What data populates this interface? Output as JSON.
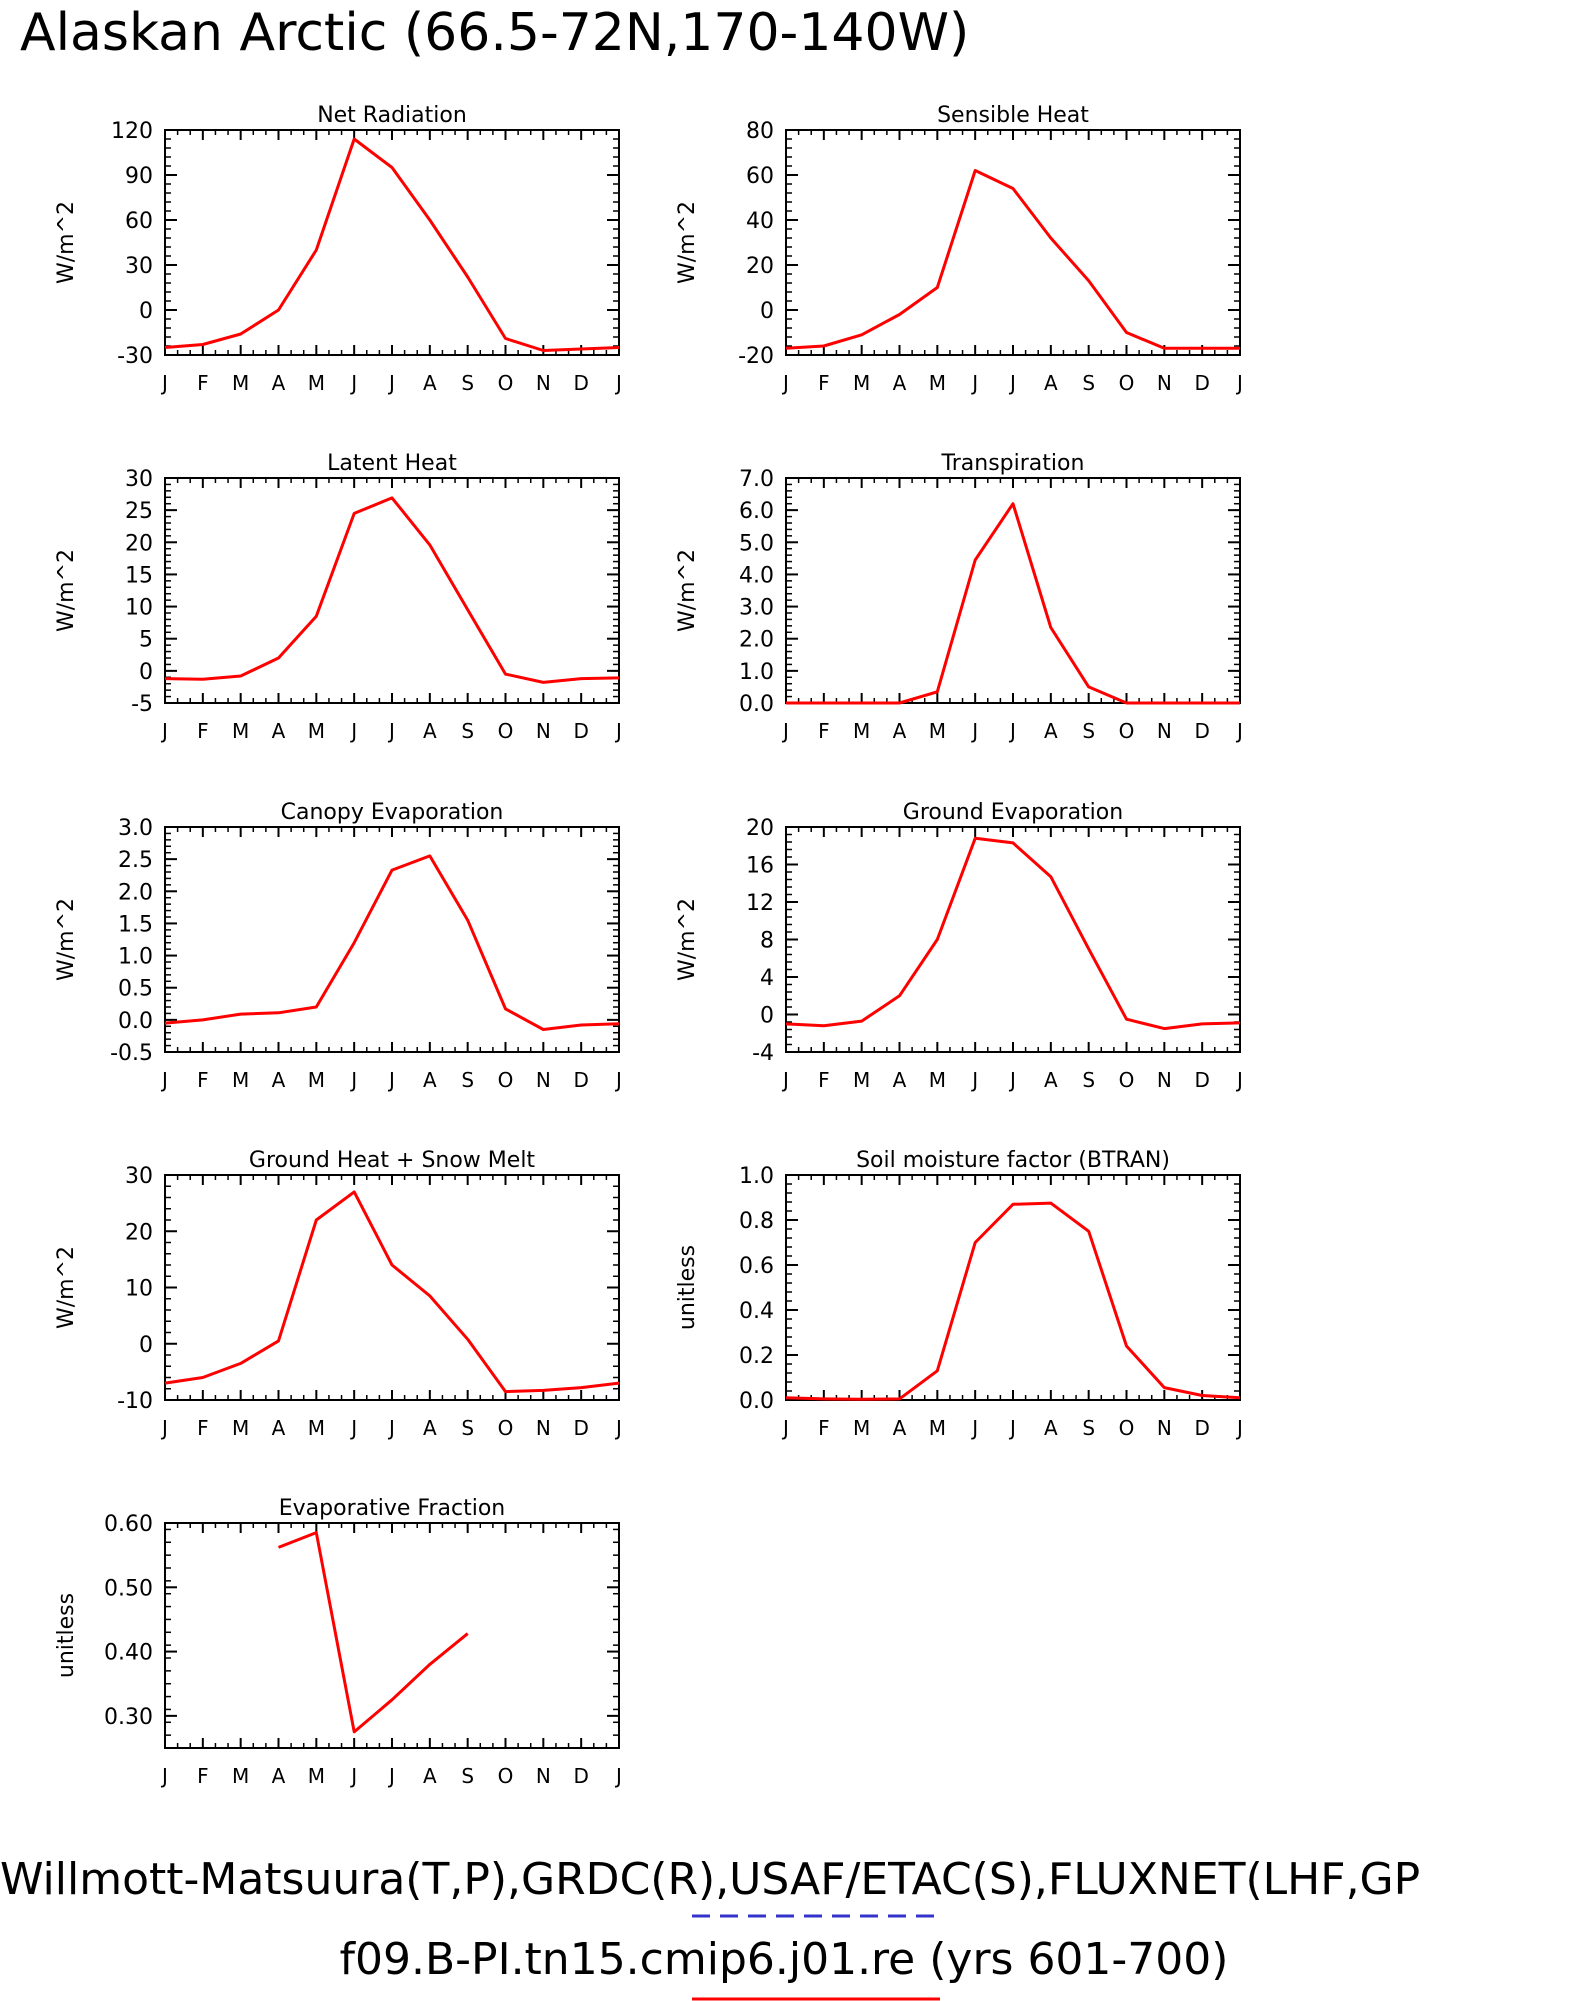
{
  "page": {
    "title": "Alaskan Arctic (66.5-72N,170-140W)",
    "footer_line1": "Willmott-Matsuura(T,P),GRDC(R),USAF/ETAC(S),FLUXNET(LHF,GP",
    "footer_line2": "f09.B-PI.tn15.cmip6.j01.re (yrs 601-700)",
    "colors": {
      "series": "#ff0000",
      "obs_dash": "#3333cc",
      "axis": "#000000"
    }
  },
  "chart_data": [
    {
      "type": "line",
      "title": "Net Radiation",
      "ylabel": "W/m^2",
      "categories": [
        "J",
        "F",
        "M",
        "A",
        "M",
        "J",
        "J",
        "A",
        "S",
        "O",
        "N",
        "D",
        "J"
      ],
      "ylim": [
        -30,
        120
      ],
      "yticks": [
        -30,
        0,
        30,
        60,
        90,
        120
      ],
      "ytick_labels": [
        "-30",
        "0",
        "30",
        "60",
        "90",
        "120"
      ],
      "series": [
        {
          "values": [
            -25,
            -23,
            -16,
            0,
            40,
            114,
            95,
            60,
            22,
            -19,
            -27,
            -26,
            -25
          ]
        }
      ]
    },
    {
      "type": "line",
      "title": "Sensible Heat",
      "ylabel": "W/m^2",
      "categories": [
        "J",
        "F",
        "M",
        "A",
        "M",
        "J",
        "J",
        "A",
        "S",
        "O",
        "N",
        "D",
        "J"
      ],
      "ylim": [
        -20,
        80
      ],
      "yticks": [
        -20,
        0,
        20,
        40,
        60,
        80
      ],
      "ytick_labels": [
        "-20",
        "0",
        "20",
        "40",
        "60",
        "80"
      ],
      "series": [
        {
          "values": [
            -17,
            -16,
            -11,
            -2,
            10,
            62,
            54,
            32,
            13,
            -10,
            -17,
            -17,
            -17
          ]
        }
      ]
    },
    {
      "type": "line",
      "title": "Latent Heat",
      "ylabel": "W/m^2",
      "categories": [
        "J",
        "F",
        "M",
        "A",
        "M",
        "J",
        "J",
        "A",
        "S",
        "O",
        "N",
        "D",
        "J"
      ],
      "ylim": [
        -5,
        30
      ],
      "yticks": [
        -5,
        0,
        5,
        10,
        15,
        20,
        25,
        30
      ],
      "ytick_labels": [
        "-5",
        "0",
        "5",
        "10",
        "15",
        "20",
        "25",
        "30"
      ],
      "series": [
        {
          "values": [
            -1.2,
            -1.3,
            -0.8,
            2.0,
            8.5,
            24.5,
            26.9,
            19.6,
            9.5,
            -0.5,
            -1.8,
            -1.2,
            -1.1
          ]
        }
      ]
    },
    {
      "type": "line",
      "title": "Transpiration",
      "ylabel": "W/m^2",
      "categories": [
        "J",
        "F",
        "M",
        "A",
        "M",
        "J",
        "J",
        "A",
        "S",
        "O",
        "N",
        "D",
        "J"
      ],
      "ylim": [
        0,
        7
      ],
      "yticks": [
        0,
        1,
        2,
        3,
        4,
        5,
        6,
        7
      ],
      "ytick_labels": [
        "0.0",
        "1.0",
        "2.0",
        "3.0",
        "4.0",
        "5.0",
        "6.0",
        "7.0"
      ],
      "series": [
        {
          "values": [
            0,
            0,
            0,
            0,
            0.35,
            4.45,
            6.2,
            2.35,
            0.5,
            0,
            0,
            0,
            0
          ]
        }
      ]
    },
    {
      "type": "line",
      "title": "Canopy Evaporation",
      "ylabel": "W/m^2",
      "categories": [
        "J",
        "F",
        "M",
        "A",
        "M",
        "J",
        "J",
        "A",
        "S",
        "O",
        "N",
        "D",
        "J"
      ],
      "ylim": [
        -0.5,
        3.0
      ],
      "yticks": [
        -0.5,
        0,
        0.5,
        1.0,
        1.5,
        2.0,
        2.5,
        3.0
      ],
      "ytick_labels": [
        "-0.5",
        "0.0",
        "0.5",
        "1.0",
        "1.5",
        "2.0",
        "2.5",
        "3.0"
      ],
      "series": [
        {
          "values": [
            -0.05,
            0.0,
            0.09,
            0.11,
            0.2,
            1.2,
            2.33,
            2.55,
            1.55,
            0.17,
            -0.15,
            -0.08,
            -0.06
          ]
        }
      ]
    },
    {
      "type": "line",
      "title": "Ground Evaporation",
      "ylabel": "W/m^2",
      "categories": [
        "J",
        "F",
        "M",
        "A",
        "M",
        "J",
        "J",
        "A",
        "S",
        "O",
        "N",
        "D",
        "J"
      ],
      "ylim": [
        -4,
        20
      ],
      "yticks": [
        -4,
        0,
        4,
        8,
        12,
        16,
        20
      ],
      "ytick_labels": [
        "-4",
        "0",
        "4",
        "8",
        "12",
        "16",
        "20"
      ],
      "series": [
        {
          "values": [
            -1.0,
            -1.2,
            -0.7,
            2.0,
            8.0,
            18.8,
            18.3,
            14.7,
            7.0,
            -0.5,
            -1.5,
            -1.0,
            -0.9
          ]
        }
      ]
    },
    {
      "type": "line",
      "title": "Ground Heat + Snow Melt",
      "ylabel": "W/m^2",
      "categories": [
        "J",
        "F",
        "M",
        "A",
        "M",
        "J",
        "J",
        "A",
        "S",
        "O",
        "N",
        "D",
        "J"
      ],
      "ylim": [
        -10,
        30
      ],
      "yticks": [
        -10,
        0,
        10,
        20,
        30
      ],
      "ytick_labels": [
        "-10",
        "0",
        "10",
        "20",
        "30"
      ],
      "series": [
        {
          "values": [
            -7,
            -6,
            -3.5,
            0.5,
            22,
            27,
            14,
            8.5,
            0.8,
            -8.5,
            -8.3,
            -7.8,
            -7
          ]
        }
      ]
    },
    {
      "type": "line",
      "title": "Soil moisture factor (BTRAN)",
      "ylabel": "unitless",
      "categories": [
        "J",
        "F",
        "M",
        "A",
        "M",
        "J",
        "J",
        "A",
        "S",
        "O",
        "N",
        "D",
        "J"
      ],
      "ylim": [
        0,
        1.0
      ],
      "yticks": [
        0,
        0.2,
        0.4,
        0.6,
        0.8,
        1.0
      ],
      "ytick_labels": [
        "0.0",
        "0.2",
        "0.4",
        "0.6",
        "0.8",
        "1.0"
      ],
      "series": [
        {
          "values": [
            0.01,
            0.005,
            0.003,
            0.005,
            0.13,
            0.7,
            0.87,
            0.875,
            0.75,
            0.24,
            0.055,
            0.02,
            0.01
          ]
        }
      ]
    },
    {
      "type": "line",
      "title": "Evaporative Fraction",
      "ylabel": "unitless",
      "categories": [
        "J",
        "F",
        "M",
        "A",
        "M",
        "J",
        "J",
        "A",
        "S",
        "O",
        "N",
        "D",
        "J"
      ],
      "ylim": [
        0.25,
        0.6
      ],
      "yticks": [
        0.3,
        0.4,
        0.5,
        0.6
      ],
      "ytick_labels": [
        "0.30",
        "0.40",
        "0.50",
        "0.60"
      ],
      "series": [
        {
          "values": [
            null,
            null,
            null,
            0.562,
            0.585,
            0.275,
            0.325,
            0.38,
            0.428,
            null,
            null,
            null,
            null
          ]
        }
      ]
    }
  ]
}
